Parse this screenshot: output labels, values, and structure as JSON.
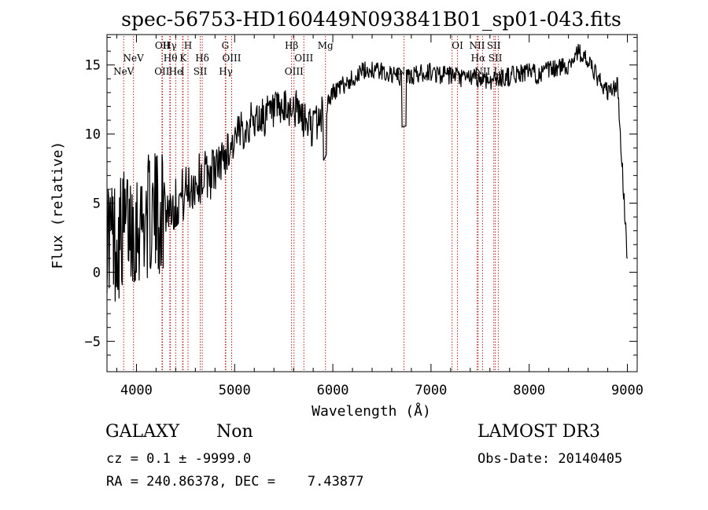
{
  "chart_data": {
    "type": "line",
    "title": "spec-56753-HD160449N093841B01_sp01-043.fits",
    "xlabel": "Wavelength (Å)",
    "ylabel": "Flux (relative)",
    "xlim": [
      3700,
      9100
    ],
    "ylim": [
      -7.2,
      17.2
    ],
    "xticks": [
      4000,
      5000,
      6000,
      7000,
      8000,
      9000
    ],
    "yticks": [
      -5,
      0,
      5,
      10,
      15
    ],
    "grid": false,
    "series": [
      {
        "x": [
          3700,
          3800,
          3900,
          4000,
          4100,
          4200,
          4300,
          4400,
          4500,
          4600,
          4700,
          4800,
          4900,
          5000,
          5100,
          5200,
          5300,
          5400,
          5500,
          5600,
          5700,
          5800,
          5900,
          6000,
          6100,
          6200,
          6300,
          6400,
          6500,
          6600,
          6700,
          6800,
          6900,
          7000,
          7100,
          7200,
          7300,
          7400,
          7500,
          7600,
          7700,
          7800,
          7900,
          8000,
          8100,
          8200,
          8300,
          8400,
          8500,
          8600,
          8700,
          8800,
          8900,
          9000
        ],
        "y": [
          3.0,
          2.2,
          3.5,
          3.5,
          4.0,
          4.2,
          4.6,
          5.0,
          5.8,
          6.5,
          7.0,
          7.4,
          8.5,
          9.5,
          10.5,
          11.0,
          11.3,
          11.5,
          11.6,
          12.0,
          11.0,
          10.5,
          11.5,
          13.0,
          13.5,
          14.0,
          14.5,
          14.7,
          14.5,
          14.3,
          14.0,
          14.2,
          14.4,
          14.5,
          14.3,
          14.2,
          14.0,
          14.1,
          14.0,
          13.9,
          14.0,
          14.2,
          14.4,
          14.5,
          14.3,
          14.6,
          14.8,
          15.0,
          16.0,
          15.2,
          14.0,
          13.0,
          13.5,
          1.0
        ]
      }
    ],
    "line_markers": [
      {
        "wavelength": 3870,
        "label": "NeV",
        "row": "lower"
      },
      {
        "wavelength": 3970,
        "label": "NeV",
        "row": "upper"
      },
      {
        "wavelength": 4260,
        "label": "OII",
        "row": "lower"
      },
      {
        "wavelength": 4265,
        "label": "OII",
        "row": "top"
      },
      {
        "wavelength": 4340,
        "label": "Hγ",
        "row": "top"
      },
      {
        "wavelength": 4346,
        "label": "Hθ",
        "row": "upper"
      },
      {
        "wavelength": 4400,
        "label": "He",
        "row": "lower"
      },
      {
        "wavelength": 4470,
        "label": "I",
        "row": "lower"
      },
      {
        "wavelength": 4475,
        "label": "K",
        "row": "upper"
      },
      {
        "wavelength": 4525,
        "label": "H",
        "row": "top"
      },
      {
        "wavelength": 4650,
        "label": "SII",
        "row": "lower"
      },
      {
        "wavelength": 4670,
        "label": "Hδ",
        "row": "upper"
      },
      {
        "wavelength": 4905,
        "label": "G",
        "row": "top"
      },
      {
        "wavelength": 4910,
        "label": "Hγ",
        "row": "lower"
      },
      {
        "wavelength": 4970,
        "label": "OIII",
        "row": "upper"
      },
      {
        "wavelength": 5580,
        "label": "Hβ",
        "row": "top"
      },
      {
        "wavelength": 5605,
        "label": "OIII",
        "row": "lower"
      },
      {
        "wavelength": 5705,
        "label": "OIII",
        "row": "upper"
      },
      {
        "wavelength": 5925,
        "label": "Mg",
        "row": "top"
      },
      {
        "wavelength": 6725,
        "label": "Na",
        "row": "lower"
      },
      {
        "wavelength": 7215,
        "label": "OI",
        "row": "lower"
      },
      {
        "wavelength": 7270,
        "label": "OI",
        "row": "top"
      },
      {
        "wavelength": 7470,
        "label": "NII",
        "row": "top"
      },
      {
        "wavelength": 7480,
        "label": "Hα",
        "row": "upper"
      },
      {
        "wavelength": 7525,
        "label": "NII",
        "row": "lower"
      },
      {
        "wavelength": 7640,
        "label": "SII",
        "row": "top"
      },
      {
        "wavelength": 7655,
        "label": "SII",
        "row": "upper"
      },
      {
        "wavelength": 7685,
        "label": "Li",
        "row": "lower"
      }
    ]
  },
  "info": {
    "obj_class": "GALAXY",
    "subclass": "Non",
    "survey": "LAMOST DR3",
    "redshift": "cz = 0.1 ± -9999.0",
    "obs_date": "Obs-Date: 20140405",
    "coords": "RA = 240.86378, DEC =    7.43877"
  },
  "colors": {
    "spectrum": "#000000",
    "marker_line": "#b22222",
    "axis": "#000000",
    "background": "#ffffff"
  }
}
